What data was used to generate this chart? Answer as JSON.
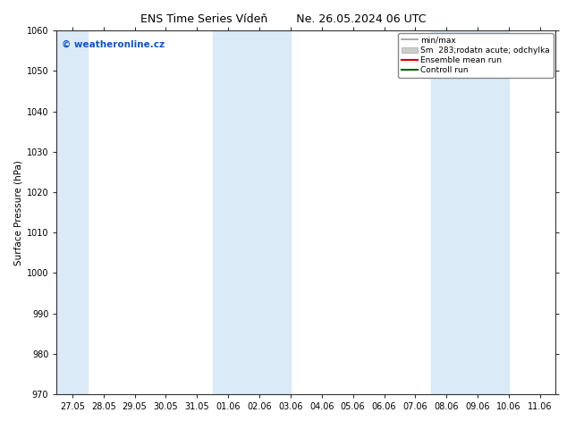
{
  "title_left": "ENS Time Series Vídeň",
  "title_right": "Ne. 26.05.2024 06 UTC",
  "ylabel": "Surface Pressure (hPa)",
  "ylim": [
    970,
    1060
  ],
  "yticks": [
    970,
    980,
    990,
    1000,
    1010,
    1020,
    1030,
    1040,
    1050,
    1060
  ],
  "bg_color": "#ffffff",
  "shaded_band_color": "#daeaf7",
  "watermark": "© weatheronline.cz",
  "watermark_color": "#1155bb",
  "x_start": "2024-05-27",
  "x_end": "2024-06-11",
  "x_tick_labels": [
    "27.05",
    "28.05",
    "29.05",
    "30.05",
    "31.05",
    "01.06",
    "02.06",
    "03.06",
    "04.06",
    "05.06",
    "06.06",
    "07.06",
    "08.06",
    "09.06",
    "10.06",
    "11.06"
  ],
  "shaded_bands_dates": [
    [
      "2024-05-26",
      "2024-05-27"
    ],
    [
      "2024-06-01",
      "2024-06-03"
    ],
    [
      "2024-06-08",
      "2024-06-10"
    ]
  ],
  "legend_labels": [
    "min/max",
    "Sm  283;rodatn acute; odchylka",
    "Ensemble mean run",
    "Controll run"
  ],
  "legend_colors": [
    "#999999",
    "#cccccc",
    "#ff0000",
    "#007700"
  ],
  "spine_color": "#333333",
  "tick_color": "#333333",
  "font_size_title": 9,
  "font_size_axis": 7.5,
  "font_size_ticks": 7,
  "font_size_legend": 6.5,
  "font_size_watermark": 7.5
}
